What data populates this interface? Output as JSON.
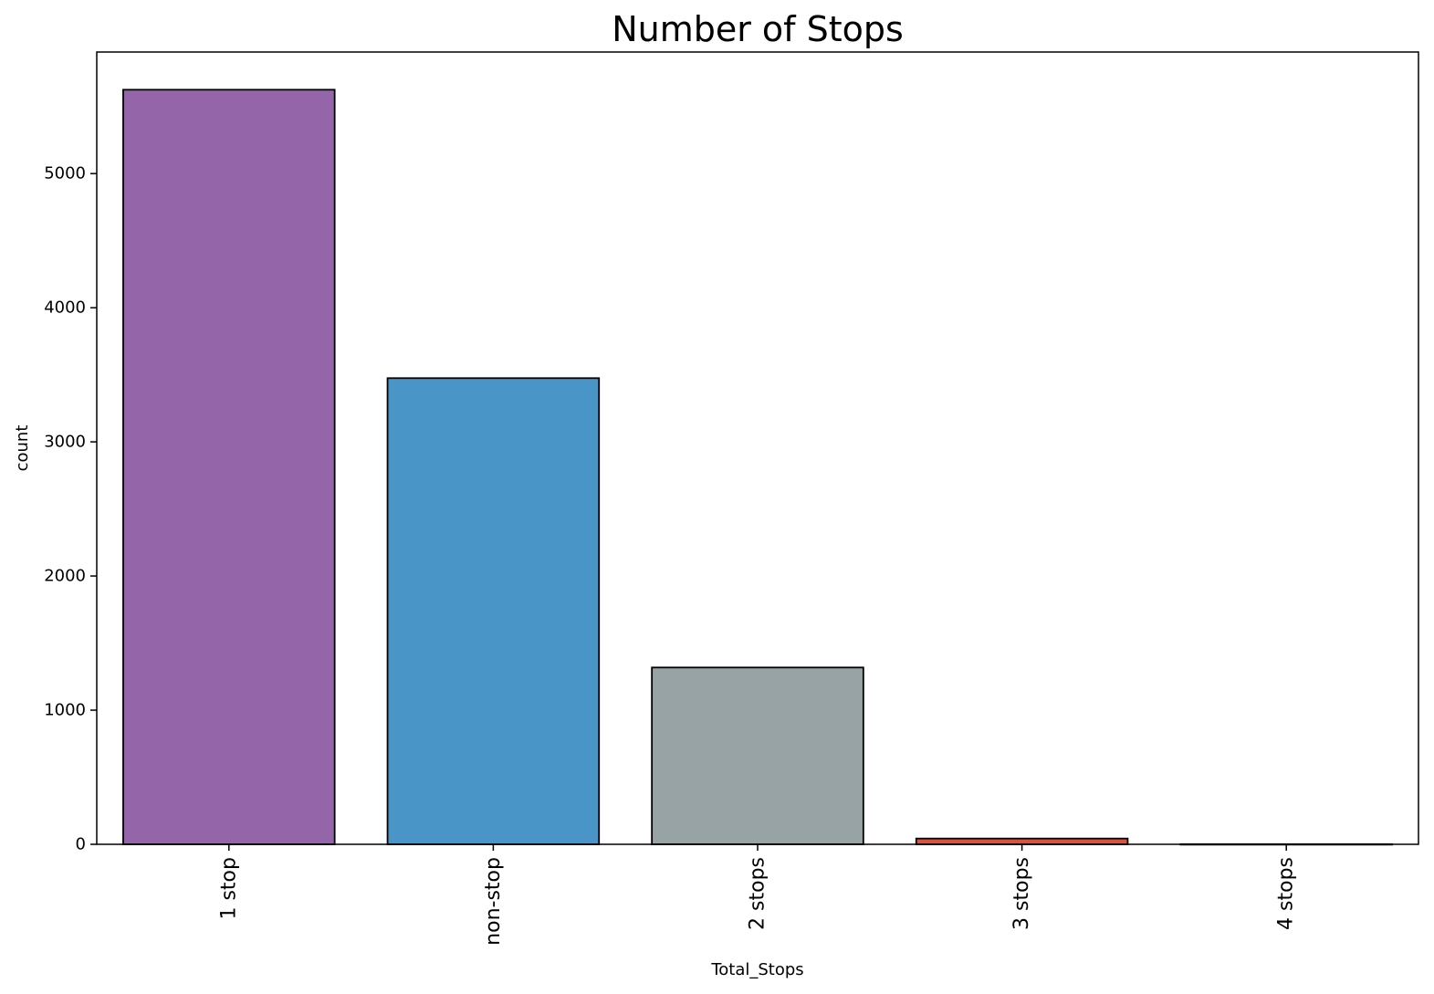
{
  "chart_data": {
    "type": "bar",
    "title": "Number of Stops",
    "xlabel": "Total_Stops",
    "ylabel": "count",
    "categories": [
      "1 stop",
      "non-stop",
      "2 stops",
      "3 stops",
      "4 stops"
    ],
    "values": [
      5625,
      3475,
      1318,
      43,
      1
    ],
    "colors": [
      "#9565a9",
      "#4995c7",
      "#97a3a5",
      "#d9513f",
      "#34495e"
    ],
    "edge_color": "#000000",
    "ylim": [
      0,
      5906
    ],
    "yticks": [
      0,
      1000,
      2000,
      3000,
      4000,
      5000
    ],
    "ytick_labels": [
      "0",
      "1000",
      "2000",
      "3000",
      "4000",
      "5000"
    ],
    "grid": false,
    "legend": false,
    "xtick_rotation": 90
  }
}
